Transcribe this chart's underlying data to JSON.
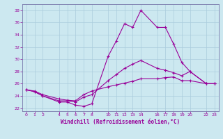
{
  "xlabel": "Windchill (Refroidissement éolien,°C)",
  "background_color": "#cce8f0",
  "grid_color": "#aaccdd",
  "line_color": "#990099",
  "spine_color": "#7777aa",
  "xlim": [
    -0.5,
    23.5
  ],
  "ylim": [
    21.5,
    39.0
  ],
  "xticks": [
    0,
    1,
    2,
    4,
    5,
    6,
    7,
    8,
    10,
    11,
    12,
    13,
    14,
    16,
    17,
    18,
    19,
    20,
    22,
    23
  ],
  "yticks": [
    22,
    24,
    26,
    28,
    30,
    32,
    34,
    36,
    38
  ],
  "line1_x": [
    0,
    1,
    2,
    4,
    5,
    6,
    7,
    8,
    10,
    11,
    12,
    13,
    14,
    16,
    17,
    18,
    19,
    20,
    22,
    23
  ],
  "line1_y": [
    25.0,
    24.7,
    24.0,
    23.0,
    23.0,
    22.5,
    22.3,
    22.7,
    30.5,
    33.0,
    35.8,
    35.2,
    38.0,
    35.2,
    35.2,
    32.5,
    29.5,
    28.0,
    26.0,
    26.0
  ],
  "line2_x": [
    0,
    1,
    2,
    4,
    5,
    6,
    7,
    8,
    10,
    11,
    12,
    13,
    14,
    16,
    17,
    18,
    19,
    20,
    22,
    23
  ],
  "line2_y": [
    25.0,
    24.7,
    24.0,
    23.2,
    23.2,
    23.0,
    23.8,
    24.2,
    26.5,
    27.5,
    28.5,
    29.2,
    29.8,
    28.5,
    28.2,
    27.8,
    27.3,
    28.0,
    26.0,
    26.0
  ],
  "line3_x": [
    0,
    1,
    2,
    4,
    5,
    6,
    7,
    8,
    10,
    11,
    12,
    13,
    14,
    16,
    17,
    18,
    19,
    20,
    22,
    23
  ],
  "line3_y": [
    25.0,
    24.8,
    24.2,
    23.5,
    23.3,
    23.2,
    24.2,
    24.8,
    25.5,
    25.8,
    26.1,
    26.4,
    26.8,
    26.8,
    27.0,
    27.1,
    26.5,
    26.5,
    26.0,
    26.0
  ]
}
